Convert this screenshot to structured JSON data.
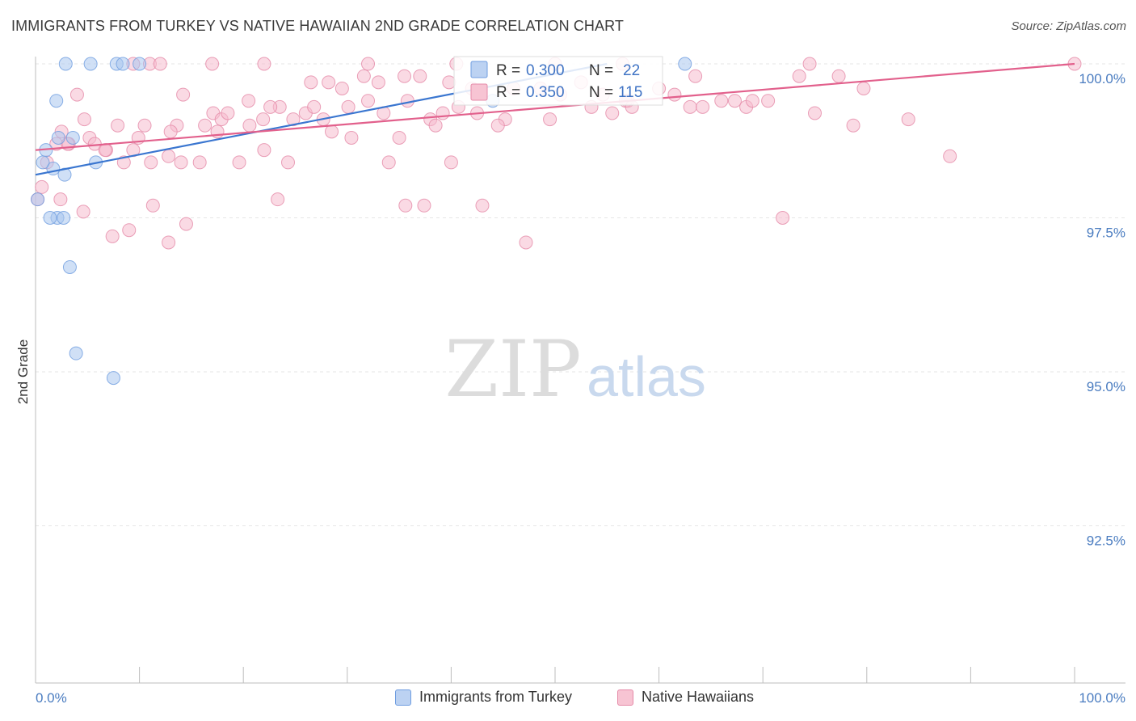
{
  "title": "IMMIGRANTS FROM TURKEY VS NATIVE HAWAIIAN 2ND GRADE CORRELATION CHART",
  "source": "Source: ZipAtlas.com",
  "watermark": {
    "zip": "ZIP",
    "atlas": "atlas"
  },
  "chart_data": {
    "type": "scatter",
    "xlabel": "",
    "ylabel": "2nd Grade",
    "xlim": [
      0,
      100
    ],
    "ylim": [
      90.3,
      100.5
    ],
    "x_tick_labels": {
      "min": "0.0%",
      "max": "100.0%"
    },
    "y_ticks": [
      100.0,
      97.5,
      95.0,
      92.5
    ],
    "y_tick_labels": [
      "100.0%",
      "97.5%",
      "95.0%",
      "92.5%"
    ],
    "legend_stats": [
      {
        "r_label": "R = ",
        "r_value": "0.300",
        "n_label": "N = ",
        "n_value": "22"
      },
      {
        "r_label": "R = ",
        "r_value": "0.350",
        "n_label": "N = ",
        "n_value": "115"
      }
    ],
    "series": [
      {
        "name": "Immigrants from Turkey",
        "color": "#6f9de0",
        "fill": "#a9c6ef",
        "trend": {
          "x": [
            0,
            55
          ],
          "y": [
            98.2,
            100.0
          ]
        },
        "points": [
          [
            2.9,
            100.0
          ],
          [
            5.3,
            100.0
          ],
          [
            7.8,
            100.0
          ],
          [
            8.4,
            100.0
          ],
          [
            10.0,
            100.0
          ],
          [
            2.0,
            99.4
          ],
          [
            1.0,
            98.6
          ],
          [
            2.2,
            98.8
          ],
          [
            3.6,
            98.8
          ],
          [
            1.7,
            98.3
          ],
          [
            5.8,
            98.4
          ],
          [
            0.7,
            98.4
          ],
          [
            2.8,
            98.2
          ],
          [
            0.2,
            97.8
          ],
          [
            2.1,
            97.5
          ],
          [
            1.4,
            97.5
          ],
          [
            2.7,
            97.5
          ],
          [
            3.3,
            96.7
          ],
          [
            3.9,
            95.3
          ],
          [
            7.5,
            94.9
          ],
          [
            44.0,
            99.4
          ],
          [
            62.5,
            100.0
          ]
        ]
      },
      {
        "name": "Native Hawaiians",
        "color": "#e58aa8",
        "fill": "#f5bccd",
        "trend": {
          "x": [
            0,
            100
          ],
          "y": [
            98.6,
            100.0
          ]
        },
        "points": [
          [
            0.2,
            97.8
          ],
          [
            0.6,
            98.0
          ],
          [
            2.4,
            97.8
          ],
          [
            1.1,
            98.4
          ],
          [
            2.0,
            98.7
          ],
          [
            3.2,
            98.7
          ],
          [
            5.2,
            98.8
          ],
          [
            6.8,
            98.6
          ],
          [
            9.4,
            98.6
          ],
          [
            8.5,
            98.4
          ],
          [
            11.1,
            98.4
          ],
          [
            12.8,
            98.5
          ],
          [
            14.0,
            98.4
          ],
          [
            15.8,
            98.4
          ],
          [
            19.6,
            98.4
          ],
          [
            22.0,
            98.6
          ],
          [
            24.3,
            98.4
          ],
          [
            28.5,
            98.9
          ],
          [
            34.0,
            98.4
          ],
          [
            35.0,
            98.8
          ],
          [
            40.0,
            98.4
          ],
          [
            2.5,
            98.9
          ],
          [
            4.7,
            99.1
          ],
          [
            3.1,
            98.7
          ],
          [
            5.7,
            98.7
          ],
          [
            6.7,
            98.6
          ],
          [
            9.9,
            98.8
          ],
          [
            13.6,
            99.0
          ],
          [
            16.3,
            99.0
          ],
          [
            17.1,
            99.2
          ],
          [
            17.9,
            99.1
          ],
          [
            18.5,
            99.2
          ],
          [
            20.6,
            99.0
          ],
          [
            21.9,
            99.1
          ],
          [
            23.5,
            99.3
          ],
          [
            24.8,
            99.1
          ],
          [
            26.0,
            99.2
          ],
          [
            27.7,
            99.1
          ],
          [
            30.4,
            98.8
          ],
          [
            32.0,
            99.4
          ],
          [
            33.5,
            99.2
          ],
          [
            35.8,
            99.4
          ],
          [
            38.0,
            99.1
          ],
          [
            39.2,
            99.2
          ],
          [
            40.7,
            99.3
          ],
          [
            42.5,
            99.2
          ],
          [
            45.2,
            99.1
          ],
          [
            49.5,
            99.1
          ],
          [
            53.5,
            99.3
          ],
          [
            55.5,
            99.2
          ],
          [
            57.0,
            99.4
          ],
          [
            61.5,
            99.5
          ],
          [
            63.0,
            99.3
          ],
          [
            66.0,
            99.4
          ],
          [
            68.4,
            99.3
          ],
          [
            69.0,
            99.4
          ],
          [
            75.0,
            99.2
          ],
          [
            78.7,
            99.0
          ],
          [
            84.0,
            99.1
          ],
          [
            88.0,
            98.5
          ],
          [
            4.0,
            99.5
          ],
          [
            14.2,
            99.5
          ],
          [
            20.5,
            99.4
          ],
          [
            22.6,
            99.3
          ],
          [
            26.5,
            99.7
          ],
          [
            28.2,
            99.7
          ],
          [
            29.5,
            99.6
          ],
          [
            31.6,
            99.8
          ],
          [
            33.0,
            99.7
          ],
          [
            35.5,
            99.8
          ],
          [
            37.0,
            99.8
          ],
          [
            39.8,
            99.7
          ],
          [
            42.0,
            99.6
          ],
          [
            46.0,
            99.6
          ],
          [
            48.6,
            99.6
          ],
          [
            50.5,
            99.5
          ],
          [
            52.5,
            99.7
          ],
          [
            54.6,
            99.5
          ],
          [
            56.8,
            99.4
          ],
          [
            57.4,
            99.3
          ],
          [
            60.0,
            99.6
          ],
          [
            63.5,
            99.8
          ],
          [
            64.2,
            99.3
          ],
          [
            67.3,
            99.4
          ],
          [
            70.5,
            99.4
          ],
          [
            73.5,
            99.8
          ],
          [
            77.3,
            99.8
          ],
          [
            79.7,
            99.6
          ],
          [
            7.9,
            99.0
          ],
          [
            10.5,
            99.0
          ],
          [
            13.0,
            98.9
          ],
          [
            17.5,
            98.9
          ],
          [
            26.8,
            99.3
          ],
          [
            30.1,
            99.3
          ],
          [
            38.5,
            99.0
          ],
          [
            44.5,
            99.0
          ],
          [
            4.6,
            97.6
          ],
          [
            11.3,
            97.7
          ],
          [
            7.4,
            97.2
          ],
          [
            9.0,
            97.3
          ],
          [
            12.8,
            97.1
          ],
          [
            14.5,
            97.4
          ],
          [
            23.3,
            97.8
          ],
          [
            35.6,
            97.7
          ],
          [
            37.4,
            97.7
          ],
          [
            43.0,
            97.7
          ],
          [
            47.2,
            97.1
          ],
          [
            71.9,
            97.5
          ],
          [
            9.4,
            100.0
          ],
          [
            11.0,
            100.0
          ],
          [
            12.0,
            100.0
          ],
          [
            17.0,
            100.0
          ],
          [
            22.0,
            100.0
          ],
          [
            32.0,
            100.0
          ],
          [
            40.5,
            100.0
          ],
          [
            50.0,
            100.0
          ],
          [
            56.5,
            100.0
          ],
          [
            74.5,
            100.0
          ],
          [
            100.0,
            100.0
          ]
        ]
      }
    ]
  }
}
